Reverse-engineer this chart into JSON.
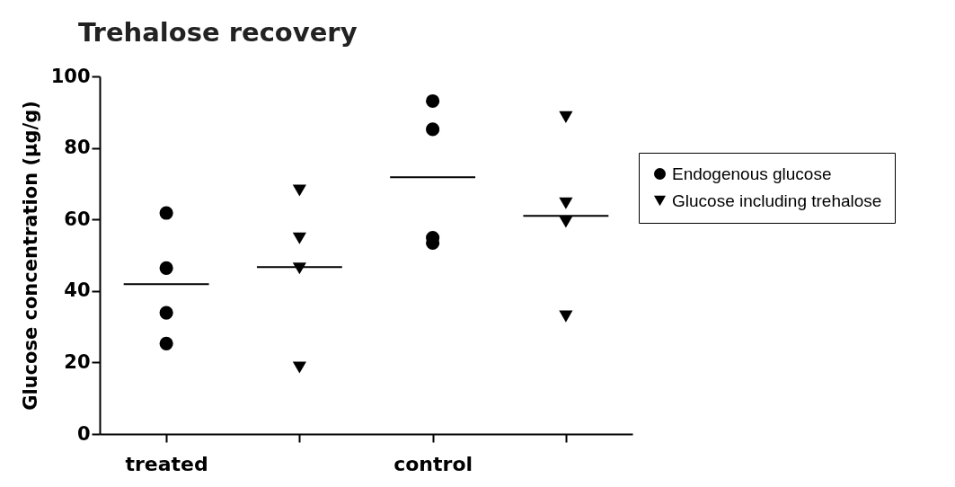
{
  "chart_data": {
    "type": "scatter",
    "title": "Trehalose recovery",
    "ylabel": "Glucose concentration (µg/g)",
    "categories": [
      "treated",
      null,
      "control",
      null
    ],
    "ylim": [
      0,
      100
    ],
    "yticks": [
      0,
      20,
      40,
      60,
      80,
      100
    ],
    "grid": false,
    "legend": "right",
    "ref_lines": [
      {
        "axis": "y",
        "value": 41.9,
        "color": "#000000"
      },
      {
        "axis": "y",
        "value": 46.7,
        "color": "#000000"
      },
      {
        "axis": "y",
        "value": 71.8,
        "color": "#000000"
      },
      {
        "axis": "y",
        "value": 61.0,
        "color": "#000000"
      }
    ],
    "series": [
      {
        "name": "Endogenous glucose",
        "color": "#000000",
        "marker": "circle",
        "values": [
          61.8,
          null,
          93.1,
          null
        ]
      },
      {
        "color": "#000000",
        "marker": "circle",
        "values": [
          46.4,
          null,
          85.2,
          null
        ]
      },
      {
        "color": "#000000",
        "marker": "circle",
        "values": [
          33.9,
          null,
          53.4,
          null
        ]
      },
      {
        "color": "#000000",
        "marker": "circle",
        "values": [
          25.3,
          null,
          54.9,
          null
        ]
      },
      {
        "name": "Glucose including trehalose",
        "color": "#000000",
        "marker": "triangle",
        "values": [
          null,
          68.1,
          null,
          88.6
        ]
      },
      {
        "color": "#000000",
        "marker": "triangle",
        "values": [
          null,
          54.7,
          null,
          64.5
        ]
      },
      {
        "color": "#000000",
        "marker": "triangle",
        "values": [
          null,
          46.3,
          null,
          59.3
        ]
      },
      {
        "color": "#000000",
        "marker": "triangle",
        "values": [
          null,
          18.6,
          null,
          32.9
        ]
      }
    ]
  }
}
